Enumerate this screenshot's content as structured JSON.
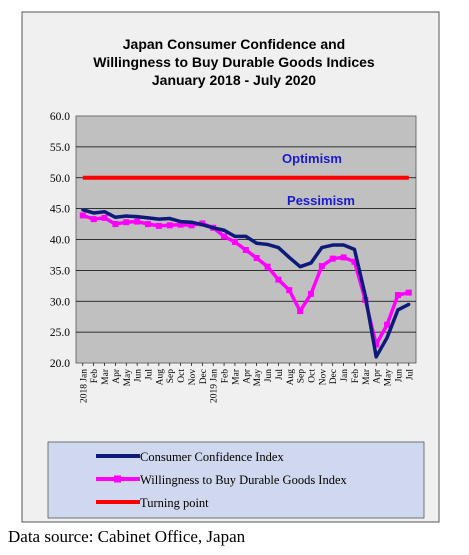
{
  "chart_data": {
    "type": "line",
    "title": [
      "Japan Consumer Confidence and",
      "Willingness to Buy Durable Goods Indices",
      "January 2018 - July 2020"
    ],
    "xlabel": "",
    "ylabel": "",
    "ylim": [
      20,
      60
    ],
    "yticks": [
      "60.0",
      "55.0",
      "50.0",
      "45.0",
      "40.0",
      "35.0",
      "30.0",
      "25.0",
      "20.0"
    ],
    "grid": true,
    "x": [
      "2018 Jan",
      "Feb",
      "Mar",
      "Apr",
      "May",
      "Jun",
      "Jul",
      "Aug",
      "Sep",
      "Oct",
      "Nov",
      "Dec",
      "2019 Jan",
      "Feb",
      "Mar",
      "Apr",
      "May",
      "Jun",
      "Jul",
      "Aug",
      "Sep",
      "Oct",
      "Nov",
      "Dec",
      "Jan",
      "Feb",
      "Mar",
      "Apr",
      "May",
      "Jun",
      "Jul"
    ],
    "series": [
      {
        "name": "Consumer Confidence Index",
        "color": "#0d1a7a",
        "values": [
          44.8,
          44.3,
          44.5,
          43.6,
          43.8,
          43.7,
          43.5,
          43.3,
          43.4,
          42.9,
          42.8,
          42.4,
          41.9,
          41.5,
          40.5,
          40.5,
          39.4,
          39.2,
          38.7,
          37.1,
          35.6,
          36.2,
          38.7,
          39.1,
          39.1,
          38.4,
          30.9,
          21.0,
          24.1,
          28.6,
          29.5
        ]
      },
      {
        "name": "Willingness to Buy Durable Goods Index",
        "color": "#ff00ff",
        "values": [
          43.9,
          43.3,
          43.5,
          42.5,
          42.8,
          42.9,
          42.5,
          42.2,
          42.3,
          42.4,
          42.3,
          42.6,
          41.9,
          40.5,
          39.6,
          38.3,
          37.0,
          35.6,
          33.5,
          31.8,
          28.4,
          31.2,
          35.7,
          36.9,
          37.1,
          36.4,
          30.2,
          23.0,
          26.2,
          31.0,
          31.4
        ]
      },
      {
        "name": "Turning point",
        "color": "#ff0000",
        "values": [
          50.0,
          50.0,
          50.0,
          50.0,
          50.0,
          50.0,
          50.0,
          50.0,
          50.0,
          50.0,
          50.0,
          50.0,
          50.0,
          50.0,
          50.0,
          50.0,
          50.0,
          50.0,
          50.0,
          50.0,
          50.0,
          50.0,
          50.0,
          50.0,
          50.0,
          50.0,
          50.0,
          50.0,
          50.0,
          50.0,
          50.0
        ]
      }
    ],
    "annotations": [
      {
        "text": "Optimism",
        "color": "#1a1acc"
      },
      {
        "text": "Pessimism",
        "color": "#1a1acc"
      }
    ],
    "legend_placement": "bottom"
  },
  "source": "Data source: Cabinet Office, Japan",
  "colors": {
    "frame_bg": "#f0f0f0",
    "plot_bg": "#c0c0c0",
    "legend_bg": "#cfd8ee"
  }
}
